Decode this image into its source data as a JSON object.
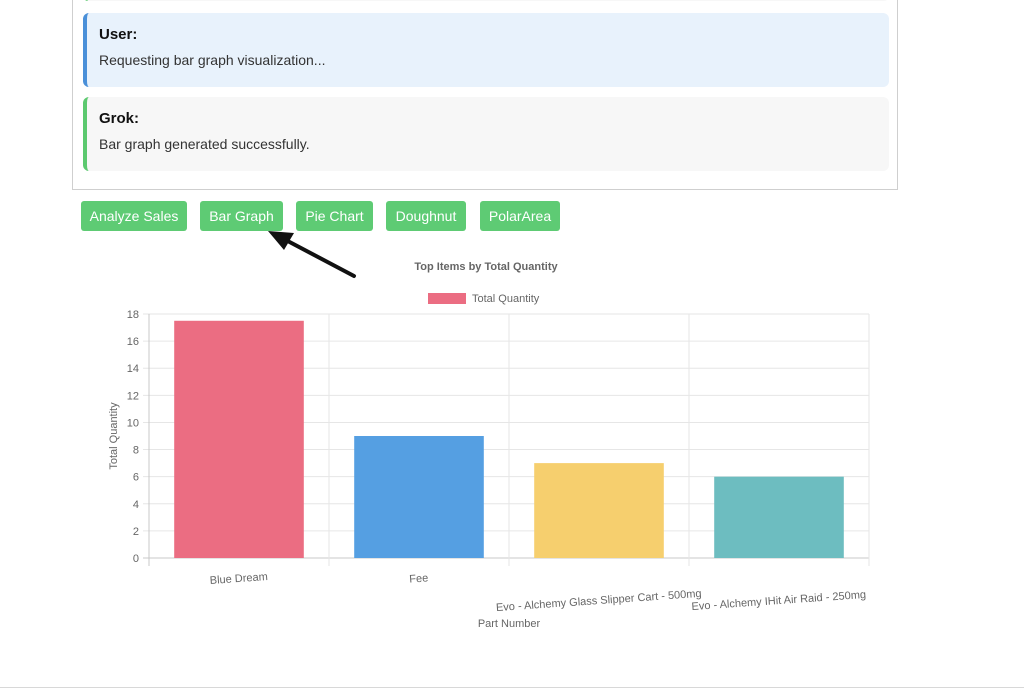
{
  "chat": {
    "messages": [
      {
        "sender": "User:",
        "text": "Requesting bar graph visualization..."
      },
      {
        "sender": "Grok:",
        "text": "Bar graph generated successfully."
      }
    ]
  },
  "buttons": {
    "analyze_sales": "Analyze Sales",
    "bar_graph": "Bar Graph",
    "pie_chart": "Pie Chart",
    "doughnut": "Doughnut",
    "polar_area": "PolarArea"
  },
  "colors": {
    "button": "#5ecb74",
    "user_accent": "#4a90d9",
    "grok_accent": "#5cc96f"
  },
  "chart_data": {
    "type": "bar",
    "title": "Top Items by Total Quantity",
    "xlabel": "Part Number",
    "ylabel": "Total Quantity",
    "ylim": [
      0,
      18
    ],
    "yticks": [
      0,
      2,
      4,
      6,
      8,
      10,
      12,
      14,
      16,
      18
    ],
    "grid": true,
    "legend_position": "top",
    "categories": [
      "Blue Dream",
      "Fee",
      "Evo - Alchemy Glass Slipper Cart - 500mg",
      "Evo - Alchemy IHit Air Raid - 250mg"
    ],
    "series": [
      {
        "name": "Total Quantity",
        "values": [
          17.5,
          9,
          7,
          6
        ]
      }
    ],
    "bar_colors": [
      "#eb6d82",
      "#559fe2",
      "#f6cf6e",
      "#6dbdc0"
    ],
    "legend_color": "#eb6d82"
  }
}
